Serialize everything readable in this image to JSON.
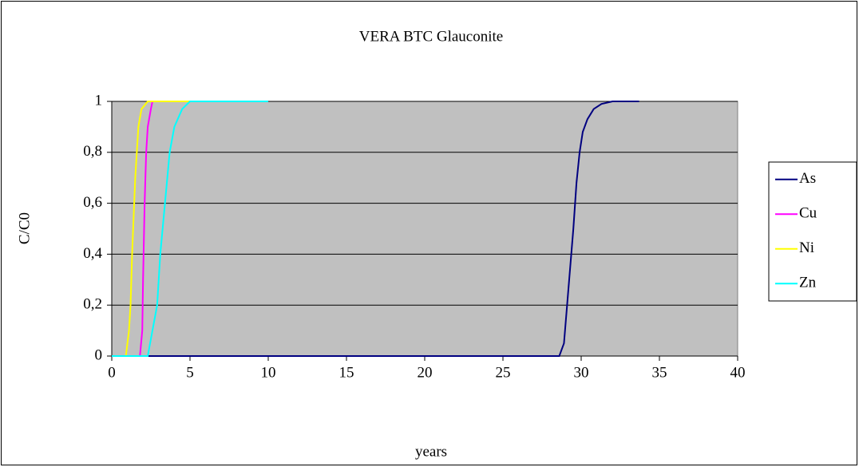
{
  "chart_data": {
    "type": "line",
    "title": "VERA BTC Glauconite",
    "x_label": "years",
    "y_label": "C/C0",
    "xlim": [
      0,
      40
    ],
    "xticks": [
      0,
      5,
      10,
      15,
      20,
      25,
      30,
      35,
      40
    ],
    "ylim": [
      0,
      1
    ],
    "yticks": [
      0,
      {
        "value": 0.2,
        "label": "0,2"
      },
      {
        "value": 0.4,
        "label": "0,4"
      },
      {
        "value": 0.6,
        "label": "0,6"
      },
      {
        "value": 0.8,
        "label": "0,8"
      },
      1
    ],
    "grid": true,
    "legend": "right",
    "plot_background": "#c0c0c0",
    "series": [
      {
        "name": "As",
        "color": "#000080",
        "x": [
          0,
          28.6,
          28.9,
          29.1,
          29.3,
          29.5,
          29.7,
          29.9,
          30.1,
          30.4,
          30.8,
          31.3,
          32,
          33.7
        ],
        "values": [
          0,
          0,
          0.05,
          0.2,
          0.35,
          0.5,
          0.68,
          0.8,
          0.88,
          0.93,
          0.97,
          0.99,
          1,
          1
        ]
      },
      {
        "name": "Cu",
        "color": "#ff00ff",
        "x": [
          0,
          1.8,
          1.95,
          2.0,
          2.1,
          2.2,
          2.3,
          2.5,
          2.6,
          5
        ],
        "values": [
          0,
          0,
          0.1,
          0.3,
          0.6,
          0.8,
          0.9,
          0.97,
          1,
          1
        ]
      },
      {
        "name": "Ni",
        "color": "#ffff00",
        "x": [
          0,
          0.9,
          1.1,
          1.2,
          1.3,
          1.5,
          1.7,
          1.9,
          2.3,
          5
        ],
        "values": [
          0,
          0,
          0.1,
          0.2,
          0.4,
          0.7,
          0.9,
          0.97,
          1,
          1
        ]
      },
      {
        "name": "Zn",
        "color": "#00ffff",
        "x": [
          0,
          2.3,
          2.6,
          2.9,
          3.1,
          3.4,
          3.7,
          4.0,
          4.5,
          5,
          10
        ],
        "values": [
          0,
          0,
          0.1,
          0.2,
          0.4,
          0.6,
          0.8,
          0.9,
          0.97,
          1,
          1
        ]
      }
    ]
  }
}
